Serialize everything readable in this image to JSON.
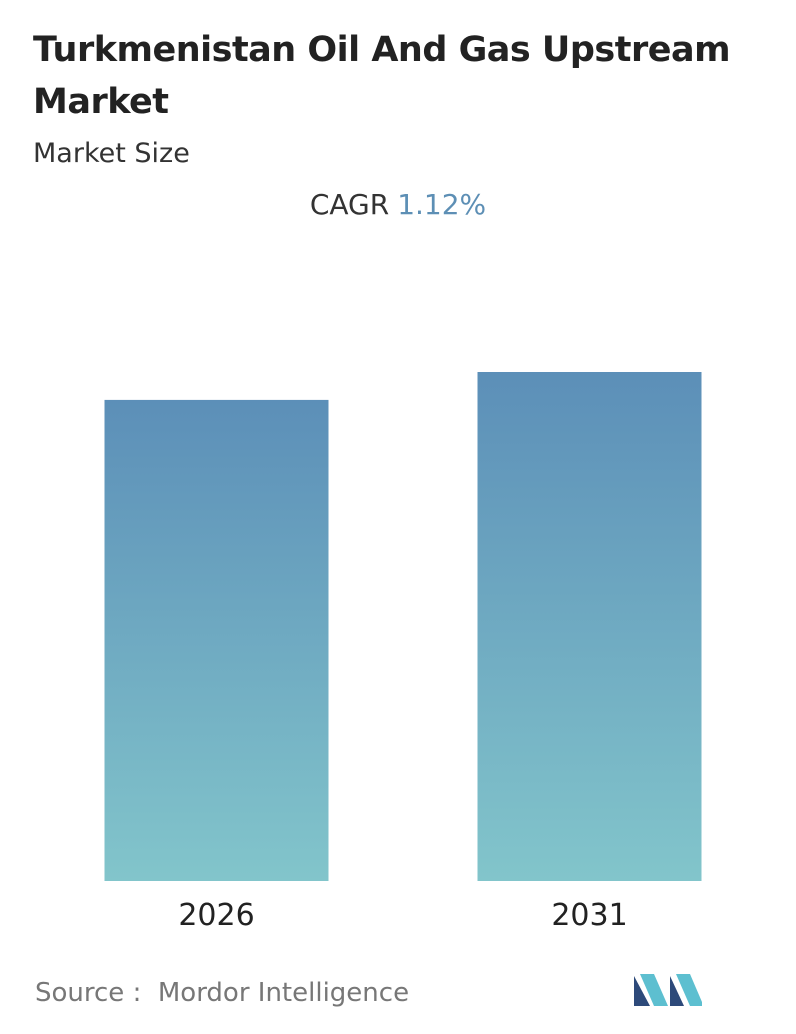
{
  "chart_data": {
    "type": "bar",
    "title": "Turkmenistan Oil And Gas Upstream Market",
    "subtitle": "Market Size",
    "annotation": {
      "label": "CAGR",
      "value": "1.12%"
    },
    "categories": [
      "2026",
      "2031"
    ],
    "values": [
      100,
      105.8
    ],
    "gradient": [
      "#5c8fb8",
      "#82c5cb"
    ],
    "source": "Source :  Mordor Intelligence"
  }
}
